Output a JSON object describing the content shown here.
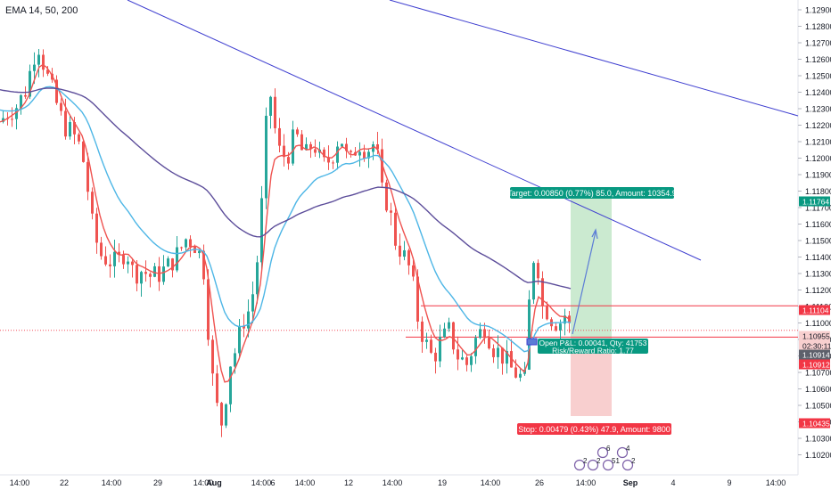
{
  "indicator_title": "EMA 14, 50, 200",
  "colors": {
    "up": "#26a69a",
    "down": "#ef5350",
    "ema14": "#ef5350",
    "ema50": "#4db6e6",
    "ema200": "#5c4d9a",
    "trend": "#3f3fd0",
    "profit_fill": "#cbead0",
    "loss_fill": "#f8cfcf",
    "target_bg": "#089981",
    "stop_bg": "#f23645",
    "price_red": "#f23645",
    "price_gray": "#787b86",
    "price_dark": "#5d606b"
  },
  "chart_data": {
    "type": "candlestick",
    "title": "",
    "ylim": [
      1.1018,
      1.1297
    ],
    "y_ticks": [
      "1.12900",
      "1.12800",
      "1.12700",
      "1.12600",
      "1.12500",
      "1.12400",
      "1.12300",
      "1.12200",
      "1.12100",
      "1.12000",
      "1.11900",
      "1.11800",
      "1.11700",
      "1.11600",
      "1.11500",
      "1.11400",
      "1.11300",
      "1.11200",
      "1.11100",
      "1.11000",
      "1.10900",
      "1.10800",
      "1.10700",
      "1.10600",
      "1.10500",
      "1.10400",
      "1.10300",
      "1.10200"
    ],
    "x_ticks": [
      "14:00",
      "22",
      "14:00",
      "29",
      "14:00",
      "Aug",
      "14:00",
      "6",
      "14:00",
      "12",
      "14:00",
      "19",
      "14:00",
      "26",
      "14:00",
      "Sep",
      "4",
      "9",
      "14:00"
    ],
    "price_labels": [
      {
        "label": "1.11764",
        "kind": "target"
      },
      {
        "label": "1.11104",
        "kind": "entry"
      },
      {
        "label": "1.10955",
        "kind": "last"
      },
      {
        "label": "02:30:11",
        "kind": "timer"
      },
      {
        "label": "1.10914",
        "kind": "dark"
      },
      {
        "label": "1.10912",
        "kind": "red"
      },
      {
        "label": "1.10435",
        "kind": "stop"
      }
    ],
    "position": {
      "side": "long",
      "entry": 1.10914,
      "target": 1.11764,
      "stop": 1.10435,
      "target_text": "Target: 0.00850 (0.77%) 85.0, Amount: 10354.9",
      "stop_text": "Stop: 0.00479 (0.43%) 47.9, Amount: 9800",
      "open_pl_text": "Open P&L: 0.00041, Qty: 41753",
      "rr_text": "Risk/Reward Ratio: 1.77"
    },
    "trendlines": [
      {
        "from": [
          1.1305,
          "pre"
        ],
        "to": [
          1.1163,
          "late"
        ]
      },
      {
        "from": [
          1.1305,
          "mid"
        ],
        "to": [
          1.1225,
          "end"
        ]
      }
    ],
    "lines": {
      "entry_level": 1.11104,
      "last_price": 1.10955
    },
    "events": [
      {
        "label": "2",
        "kind": "econ"
      },
      {
        "label": "2",
        "kind": "econ"
      },
      {
        "label": "6",
        "kind": "econ"
      },
      {
        "label": "51",
        "kind": "econ"
      },
      {
        "label": "4",
        "kind": "econ"
      },
      {
        "label": "2",
        "kind": "econ"
      }
    ],
    "ema_legend": [
      "EMA 14",
      "EMA 50",
      "EMA 200"
    ]
  }
}
